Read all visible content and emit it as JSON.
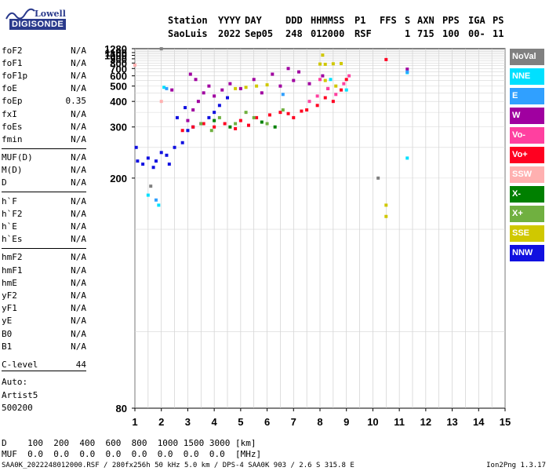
{
  "logo": {
    "line1": "Lowell",
    "line2": "DIGISONDE"
  },
  "header": {
    "labels": [
      "Station",
      "YYYY",
      "DAY",
      "DDD",
      "HHMMSS",
      "P1",
      "FFS",
      "S",
      "AXN",
      "PPS",
      "IGA",
      "PS"
    ],
    "values": [
      "SaoLuis",
      "2022",
      "Sep05",
      "248",
      "012000",
      "RSF",
      "",
      "1",
      "715",
      "100",
      "00-",
      "11"
    ]
  },
  "params": [
    {
      "name": "foF2",
      "value": "N/A"
    },
    {
      "name": "foF1",
      "value": "N/A"
    },
    {
      "name": "foF1p",
      "value": "N/A"
    },
    {
      "name": "foE",
      "value": "N/A"
    },
    {
      "name": "foEp",
      "value": "0.35"
    },
    {
      "name": "fxI",
      "value": "N/A"
    },
    {
      "name": "foEs",
      "value": "N/A"
    },
    {
      "name": "fmin",
      "value": "N/A"
    },
    {
      "name": "MUF(D)",
      "value": "N/A"
    },
    {
      "name": "M(D)",
      "value": "N/A"
    },
    {
      "name": "D",
      "value": "N/A"
    },
    {
      "name": "h`F",
      "value": "N/A"
    },
    {
      "name": "h`F2",
      "value": "N/A"
    },
    {
      "name": "h`E",
      "value": "N/A"
    },
    {
      "name": "h`Es",
      "value": "N/A"
    },
    {
      "name": "hmF2",
      "value": "N/A"
    },
    {
      "name": "hmF1",
      "value": "N/A"
    },
    {
      "name": "hmE",
      "value": "N/A"
    },
    {
      "name": "yF2",
      "value": "N/A"
    },
    {
      "name": "yF1",
      "value": "N/A"
    },
    {
      "name": "yE",
      "value": "N/A"
    },
    {
      "name": "B0",
      "value": "N/A"
    },
    {
      "name": "B1",
      "value": "N/A"
    }
  ],
  "clevel": {
    "name": "C-level",
    "value": "44"
  },
  "auto": {
    "line1": "Auto:",
    "line2": "Artist5",
    "line3": "500200"
  },
  "legend": [
    {
      "label": "NoVal",
      "color": "#808080"
    },
    {
      "label": "NNE",
      "color": "#00e0ff"
    },
    {
      "label": "E",
      "color": "#30a0ff"
    },
    {
      "label": "W",
      "color": "#a000a0"
    },
    {
      "label": "Vo-",
      "color": "#ff40a0"
    },
    {
      "label": "Vo+",
      "color": "#ff0020"
    },
    {
      "label": "SSW",
      "color": "#ffb0b0"
    },
    {
      "label": "X-",
      "color": "#008000"
    },
    {
      "label": "X+",
      "color": "#70b040"
    },
    {
      "label": "SSE",
      "color": "#d0c800"
    },
    {
      "label": "NNW",
      "color": "#1010e0"
    }
  ],
  "bottom": {
    "d_label": "D",
    "d_values": "100  200  400  600  800  1000 1500 3000 [km]",
    "muf_label": "MUF",
    "muf_values": "0.0  0.0  0.0  0.0  0.0  0.0  0.0  0.0  [MHz]"
  },
  "footer": {
    "left": "SAA0K_2022248012000.RSF / 280fx256h 50 kHz 5.0 km / DPS-4 SAA0K 903 / 2.6 S 315.8 E",
    "right": "Ion2Png 1.3.17"
  },
  "chart_data": {
    "type": "scatter",
    "xlim": [
      1,
      15
    ],
    "ylim": [
      80,
      1280
    ],
    "y_scale": "reciprocal-height",
    "x_ticks": [
      1,
      2,
      3,
      4,
      5,
      6,
      7,
      8,
      9,
      10,
      11,
      12,
      13,
      14,
      15
    ],
    "y_ticks": [
      80,
      200,
      300,
      400,
      500,
      600,
      700,
      800,
      900,
      1000,
      1100,
      1280
    ],
    "grid": true,
    "series": [
      {
        "color": "#1010e0",
        "points": [
          [
            1.1,
            225
          ],
          [
            1.3,
            220
          ],
          [
            1.5,
            230
          ],
          [
            1.8,
            225
          ],
          [
            2.0,
            240
          ],
          [
            2.2,
            235
          ],
          [
            2.5,
            250
          ],
          [
            2.8,
            260
          ],
          [
            3.0,
            290
          ],
          [
            3.2,
            300
          ],
          [
            3.5,
            310
          ],
          [
            3.8,
            330
          ],
          [
            4.0,
            350
          ],
          [
            4.2,
            380
          ],
          [
            2.6,
            330
          ],
          [
            2.9,
            370
          ],
          [
            4.5,
            420
          ],
          [
            1.05,
            250
          ],
          [
            1.7,
            215
          ],
          [
            2.3,
            220
          ]
        ]
      },
      {
        "color": "#a000a0",
        "points": [
          [
            3.0,
            320
          ],
          [
            3.2,
            360
          ],
          [
            3.4,
            400
          ],
          [
            3.6,
            450
          ],
          [
            3.8,
            500
          ],
          [
            4.0,
            430
          ],
          [
            4.3,
            470
          ],
          [
            4.6,
            520
          ],
          [
            5.0,
            480
          ],
          [
            5.5,
            560
          ],
          [
            6.2,
            620
          ],
          [
            6.5,
            500
          ],
          [
            7.0,
            550
          ],
          [
            7.2,
            650
          ],
          [
            7.6,
            520
          ],
          [
            8.1,
            600
          ],
          [
            8.3,
            480
          ],
          [
            3.1,
            620
          ],
          [
            3.3,
            560
          ],
          [
            2.4,
            470
          ],
          [
            5.8,
            450
          ],
          [
            6.8,
            700
          ],
          [
            11.3,
            690
          ]
        ]
      },
      {
        "color": "#ff0020",
        "points": [
          [
            2.8,
            290
          ],
          [
            3.2,
            300
          ],
          [
            3.6,
            310
          ],
          [
            4.0,
            300
          ],
          [
            4.4,
            310
          ],
          [
            5.0,
            320
          ],
          [
            5.6,
            330
          ],
          [
            6.1,
            340
          ],
          [
            6.5,
            350
          ],
          [
            7.0,
            330
          ],
          [
            7.5,
            360
          ],
          [
            7.9,
            380
          ],
          [
            8.2,
            420
          ],
          [
            8.5,
            400
          ],
          [
            8.8,
            470
          ],
          [
            9.0,
            560
          ],
          [
            4.8,
            295
          ],
          [
            5.3,
            305
          ],
          [
            6.8,
            345
          ],
          [
            7.3,
            355
          ],
          [
            10.5,
            880
          ]
        ]
      },
      {
        "color": "#ff40a0",
        "points": [
          [
            7.9,
            430
          ],
          [
            8.3,
            480
          ],
          [
            8.6,
            440
          ],
          [
            8.9,
            520
          ],
          [
            7.6,
            400
          ],
          [
            8.0,
            560
          ],
          [
            9.1,
            600
          ]
        ]
      },
      {
        "color": "#70b040",
        "points": [
          [
            3.5,
            310
          ],
          [
            4.2,
            330
          ],
          [
            4.8,
            310
          ],
          [
            5.5,
            330
          ],
          [
            6.0,
            310
          ],
          [
            6.6,
            360
          ],
          [
            5.2,
            350
          ],
          [
            3.9,
            290
          ]
        ]
      },
      {
        "color": "#008000",
        "points": [
          [
            4.0,
            320
          ],
          [
            4.6,
            300
          ],
          [
            5.8,
            315
          ],
          [
            6.3,
            300
          ]
        ]
      },
      {
        "color": "#d0c800",
        "points": [
          [
            4.8,
            480
          ],
          [
            5.2,
            490
          ],
          [
            5.6,
            500
          ],
          [
            6.0,
            510
          ],
          [
            8.0,
            780
          ],
          [
            8.2,
            775
          ],
          [
            8.5,
            785
          ],
          [
            8.8,
            790
          ],
          [
            8.2,
            550
          ],
          [
            8.6,
            500
          ],
          [
            10.5,
            160
          ],
          [
            10.5,
            170
          ],
          [
            8.1,
            1010
          ]
        ]
      },
      {
        "color": "#00e0ff",
        "points": [
          [
            1.5,
            180
          ],
          [
            1.9,
            170
          ],
          [
            2.1,
            490
          ],
          [
            11.3,
            230
          ],
          [
            11.3,
            640
          ],
          [
            9.0,
            470
          ],
          [
            8.4,
            560
          ]
        ]
      },
      {
        "color": "#30a0ff",
        "points": [
          [
            1.8,
            175
          ],
          [
            2.2,
            480
          ],
          [
            11.3,
            650
          ],
          [
            6.6,
            440
          ]
        ]
      },
      {
        "color": "#ffb0b0",
        "points": [
          [
            1.0,
            760
          ],
          [
            2.0,
            400
          ]
        ]
      },
      {
        "color": "#808080",
        "points": [
          [
            1.6,
            190
          ],
          [
            2.0,
            1275
          ],
          [
            10.2,
            200
          ]
        ]
      }
    ]
  }
}
